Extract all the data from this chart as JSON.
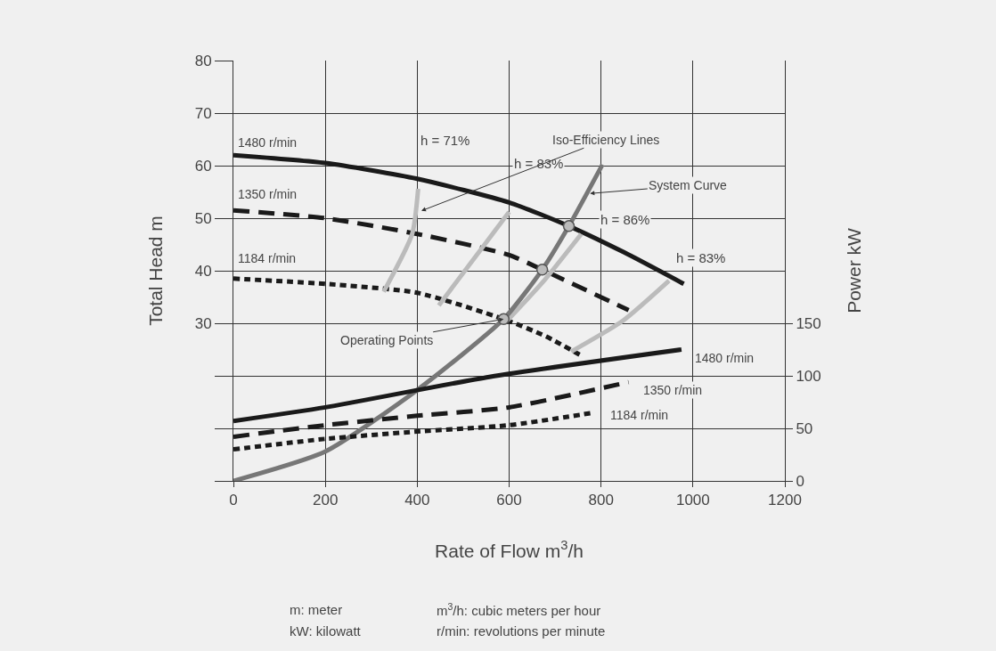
{
  "chart_data": {
    "type": "line",
    "xlabel": "Rate of Flow m$^{3}$/h",
    "ylabel": "Total Head m",
    "y2label": "Power kW",
    "xlim": [
      0,
      1200
    ],
    "xticks": [
      0,
      200,
      400,
      600,
      800,
      1000,
      1200
    ],
    "ylim": [
      0,
      80
    ],
    "yticks": [
      {
        "value": 0,
        "label": null
      },
      {
        "value": 10,
        "label": null
      },
      {
        "value": 20,
        "label": null
      },
      30,
      40,
      50,
      60,
      70,
      80
    ],
    "y2lim": [
      0,
      400
    ],
    "y2ticks": [
      0,
      50,
      100,
      150
    ],
    "grid": true,
    "series": [
      {
        "color": "#1a1a1a",
        "line_style": "solid",
        "x": [
          0,
          200,
          400,
          600,
          730,
          850,
          980
        ],
        "values": [
          62,
          60.5,
          57.5,
          53,
          48.5,
          43.5,
          37.5
        ]
      },
      {
        "type": "line",
        "color": "#1a1a1a",
        "line_style": "dashed",
        "x": [
          0,
          200,
          400,
          600,
          672,
          860
        ],
        "values": [
          51.5,
          50,
          47,
          43,
          40.2,
          32.5
        ]
      },
      {
        "type": "line",
        "color": "#1a1a1a",
        "line_style": "dotted",
        "x": [
          0,
          200,
          400,
          588,
          680,
          760
        ],
        "values": [
          38.5,
          37.5,
          35.8,
          30.8,
          27.5,
          23.7
        ]
      },
      {
        "type": "line",
        "axis": "y2",
        "color": "#1a1a1a",
        "line_style": "solid",
        "x": [
          0,
          200,
          557,
          975
        ],
        "values": [
          57,
          70,
          99,
          125
        ]
      },
      {
        "type": "line",
        "axis": "y2",
        "color": "#1a1a1a",
        "line_style": "dashed",
        "x": [
          0,
          200,
          400,
          600,
          860
        ],
        "values": [
          42,
          53,
          62,
          70,
          94
        ]
      },
      {
        "type": "line",
        "axis": "y2",
        "color": "#1a1a1a",
        "line_style": "dotted",
        "x": [
          0,
          200,
          400,
          600,
          785
        ],
        "values": [
          30,
          40,
          47,
          53,
          65
        ]
      },
      {
        "type": "line",
        "color": "#bbbbbb",
        "line_style": "solid",
        "x": [
          327,
          389,
          402
        ],
        "values": [
          36,
          47,
          55.6
        ]
      },
      {
        "type": "line",
        "color": "#bbbbbb",
        "line_style": "solid",
        "x": [
          447,
          538,
          600
        ],
        "values": [
          33.4,
          44,
          51.2
        ]
      },
      {
        "type": "line",
        "color": "#bbbbbb",
        "line_style": "solid",
        "x": [
          596,
          673,
          757
        ],
        "values": [
          30.5,
          37.8,
          47
        ]
      },
      {
        "type": "line",
        "color": "#bbbbbb",
        "line_style": "solid",
        "x": [
          735,
          848,
          948
        ],
        "values": [
          24.6,
          30.5,
          38.1
        ]
      },
      {
        "type": "line",
        "color": "#777777",
        "line_style": "solid",
        "x": [
          0,
          200,
          400,
          588,
          672,
          730,
          803
        ],
        "values": [
          0,
          5.6,
          17.3,
          30.8,
          40.2,
          48.5,
          60.2
        ]
      },
      {
        "type": "scatter",
        "color": "#bbbbbb",
        "marker": "circle",
        "x": [
          588,
          672,
          730
        ],
        "values": [
          30.8,
          40.2,
          48.5
        ]
      }
    ],
    "annotations": [
      "1480 r/min",
      "1350 r/min",
      "1184 r/min",
      "1480 r/min",
      "1350 r/min",
      "1184 r/min",
      "h = 71%",
      "h = 83%",
      "h = 86%",
      "h = 83%",
      {
        "text": "Iso-Efficiency Lines",
        "x": 409,
        "y": 51.4
      },
      {
        "text": "System Curve",
        "x": 776,
        "y": 54.7
      },
      {
        "text": "Operating Points",
        "x": 588,
        "y": 30.8
      },
      "m: meter",
      "kW: kilowatt",
      "m$^{3}$/h: cubic meters per hour",
      "r/min: revolutions per minute"
    ]
  }
}
